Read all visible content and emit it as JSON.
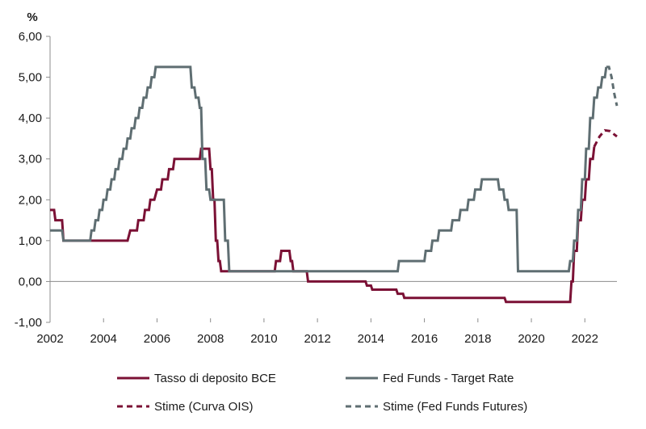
{
  "chart_data": {
    "type": "line",
    "title": "",
    "ylabel": "%",
    "xlabel": "",
    "xlim": [
      2002,
      2023.2
    ],
    "ylim": [
      -1,
      6
    ],
    "y_ticks": [
      "-1,00",
      "0,00",
      "1,00",
      "2,00",
      "3,00",
      "4,00",
      "5,00",
      "6,00"
    ],
    "y_tick_values": [
      -1,
      0,
      1,
      2,
      3,
      4,
      5,
      6
    ],
    "x_ticks": [
      "2002",
      "2004",
      "2006",
      "2008",
      "2010",
      "2012",
      "2014",
      "2016",
      "2018",
      "2020",
      "2022"
    ],
    "x_tick_values": [
      2002,
      2004,
      2006,
      2008,
      2010,
      2012,
      2014,
      2016,
      2018,
      2020,
      2022
    ],
    "grid": false,
    "legend_position": "bottom",
    "series": [
      {
        "name": "Tasso di deposito BCE",
        "color": "#7b1135",
        "style": "solid",
        "step": true,
        "points": [
          [
            2002.0,
            1.75
          ],
          [
            2002.15,
            1.75
          ],
          [
            2002.2,
            1.5
          ],
          [
            2002.45,
            1.5
          ],
          [
            2002.5,
            1.0
          ],
          [
            2004.9,
            1.0
          ],
          [
            2005.0,
            1.25
          ],
          [
            2005.25,
            1.25
          ],
          [
            2005.3,
            1.5
          ],
          [
            2005.5,
            1.5
          ],
          [
            2005.55,
            1.75
          ],
          [
            2005.7,
            1.75
          ],
          [
            2005.75,
            2.0
          ],
          [
            2005.9,
            2.0
          ],
          [
            2006.0,
            2.25
          ],
          [
            2006.15,
            2.25
          ],
          [
            2006.2,
            2.5
          ],
          [
            2006.4,
            2.5
          ],
          [
            2006.45,
            2.75
          ],
          [
            2006.6,
            2.75
          ],
          [
            2006.65,
            3.0
          ],
          [
            2007.6,
            3.0
          ],
          [
            2007.65,
            3.25
          ],
          [
            2007.95,
            3.25
          ],
          [
            2008.0,
            2.75
          ],
          [
            2008.05,
            2.75
          ],
          [
            2008.1,
            2.0
          ],
          [
            2008.15,
            2.0
          ],
          [
            2008.2,
            1.0
          ],
          [
            2008.25,
            1.0
          ],
          [
            2008.3,
            0.5
          ],
          [
            2008.35,
            0.5
          ],
          [
            2008.4,
            0.25
          ],
          [
            2010.4,
            0.25
          ],
          [
            2010.45,
            0.5
          ],
          [
            2010.6,
            0.5
          ],
          [
            2010.65,
            0.75
          ],
          [
            2010.95,
            0.75
          ],
          [
            2011.0,
            0.5
          ],
          [
            2011.05,
            0.5
          ],
          [
            2011.1,
            0.25
          ],
          [
            2011.6,
            0.25
          ],
          [
            2011.65,
            0.0
          ],
          [
            2013.8,
            0.0
          ],
          [
            2013.85,
            -0.1
          ],
          [
            2014.0,
            -0.1
          ],
          [
            2014.05,
            -0.2
          ],
          [
            2014.95,
            -0.2
          ],
          [
            2015.0,
            -0.3
          ],
          [
            2015.2,
            -0.3
          ],
          [
            2015.25,
            -0.4
          ],
          [
            2019.0,
            -0.4
          ],
          [
            2019.05,
            -0.5
          ],
          [
            2021.45,
            -0.5
          ],
          [
            2021.5,
            0.0
          ],
          [
            2021.55,
            0.0
          ],
          [
            2021.6,
            0.75
          ],
          [
            2021.7,
            0.75
          ],
          [
            2021.75,
            1.5
          ],
          [
            2021.85,
            1.5
          ],
          [
            2021.9,
            2.0
          ],
          [
            2022.0,
            2.0
          ],
          [
            2022.05,
            2.5
          ],
          [
            2022.15,
            2.5
          ],
          [
            2022.2,
            3.0
          ],
          [
            2022.3,
            3.0
          ],
          [
            2022.35,
            3.3
          ]
        ]
      },
      {
        "name": "Fed Funds - Target Rate",
        "color": "#5f6e72",
        "style": "solid",
        "step": true,
        "points": [
          [
            2002.0,
            1.25
          ],
          [
            2002.45,
            1.25
          ],
          [
            2002.5,
            1.0
          ],
          [
            2003.5,
            1.0
          ],
          [
            2003.55,
            1.25
          ],
          [
            2003.65,
            1.25
          ],
          [
            2003.7,
            1.5
          ],
          [
            2003.8,
            1.5
          ],
          [
            2003.85,
            1.75
          ],
          [
            2003.95,
            1.75
          ],
          [
            2004.0,
            2.0
          ],
          [
            2004.1,
            2.0
          ],
          [
            2004.15,
            2.25
          ],
          [
            2004.25,
            2.25
          ],
          [
            2004.3,
            2.5
          ],
          [
            2004.4,
            2.5
          ],
          [
            2004.45,
            2.75
          ],
          [
            2004.55,
            2.75
          ],
          [
            2004.6,
            3.0
          ],
          [
            2004.7,
            3.0
          ],
          [
            2004.75,
            3.25
          ],
          [
            2004.85,
            3.25
          ],
          [
            2004.9,
            3.5
          ],
          [
            2005.0,
            3.5
          ],
          [
            2005.05,
            3.75
          ],
          [
            2005.15,
            3.75
          ],
          [
            2005.2,
            4.0
          ],
          [
            2005.3,
            4.0
          ],
          [
            2005.35,
            4.25
          ],
          [
            2005.45,
            4.25
          ],
          [
            2005.5,
            4.5
          ],
          [
            2005.6,
            4.5
          ],
          [
            2005.65,
            4.75
          ],
          [
            2005.75,
            4.75
          ],
          [
            2005.8,
            5.0
          ],
          [
            2005.9,
            5.0
          ],
          [
            2005.95,
            5.25
          ],
          [
            2007.25,
            5.25
          ],
          [
            2007.3,
            4.75
          ],
          [
            2007.4,
            4.75
          ],
          [
            2007.45,
            4.5
          ],
          [
            2007.55,
            4.5
          ],
          [
            2007.6,
            4.25
          ],
          [
            2007.65,
            4.25
          ],
          [
            2007.7,
            3.0
          ],
          [
            2007.8,
            3.0
          ],
          [
            2007.85,
            2.25
          ],
          [
            2007.95,
            2.25
          ],
          [
            2008.0,
            2.0
          ],
          [
            2008.5,
            2.0
          ],
          [
            2008.55,
            1.0
          ],
          [
            2008.65,
            1.0
          ],
          [
            2008.7,
            0.25
          ],
          [
            2015.0,
            0.25
          ],
          [
            2015.05,
            0.5
          ],
          [
            2016.0,
            0.5
          ],
          [
            2016.05,
            0.75
          ],
          [
            2016.25,
            0.75
          ],
          [
            2016.3,
            1.0
          ],
          [
            2016.5,
            1.0
          ],
          [
            2016.55,
            1.25
          ],
          [
            2017.0,
            1.25
          ],
          [
            2017.05,
            1.5
          ],
          [
            2017.3,
            1.5
          ],
          [
            2017.35,
            1.75
          ],
          [
            2017.6,
            1.75
          ],
          [
            2017.65,
            2.0
          ],
          [
            2017.85,
            2.0
          ],
          [
            2017.9,
            2.25
          ],
          [
            2018.1,
            2.25
          ],
          [
            2018.15,
            2.5
          ],
          [
            2018.75,
            2.5
          ],
          [
            2018.8,
            2.25
          ],
          [
            2018.95,
            2.25
          ],
          [
            2019.0,
            2.0
          ],
          [
            2019.1,
            2.0
          ],
          [
            2019.15,
            1.75
          ],
          [
            2019.45,
            1.75
          ],
          [
            2019.5,
            0.25
          ],
          [
            2021.4,
            0.25
          ],
          [
            2021.45,
            0.5
          ],
          [
            2021.55,
            0.5
          ],
          [
            2021.6,
            1.0
          ],
          [
            2021.7,
            1.0
          ],
          [
            2021.75,
            1.75
          ],
          [
            2021.85,
            1.75
          ],
          [
            2021.9,
            2.5
          ],
          [
            2022.0,
            2.5
          ],
          [
            2022.05,
            3.25
          ],
          [
            2022.15,
            3.25
          ],
          [
            2022.2,
            4.0
          ],
          [
            2022.3,
            4.0
          ],
          [
            2022.35,
            4.5
          ],
          [
            2022.45,
            4.5
          ],
          [
            2022.5,
            4.75
          ],
          [
            2022.6,
            4.75
          ],
          [
            2022.65,
            5.0
          ],
          [
            2022.75,
            5.0
          ],
          [
            2022.8,
            5.25
          ]
        ]
      },
      {
        "name": "Stime (Curva OIS)",
        "color": "#7b1135",
        "style": "dashed",
        "points": [
          [
            2022.35,
            3.3
          ],
          [
            2022.55,
            3.55
          ],
          [
            2022.75,
            3.7
          ],
          [
            2022.95,
            3.68
          ],
          [
            2023.1,
            3.6
          ],
          [
            2023.2,
            3.55
          ]
        ]
      },
      {
        "name": "Stime (Fed Funds Futures)",
        "color": "#5f6e72",
        "style": "dashed",
        "points": [
          [
            2022.8,
            5.25
          ],
          [
            2022.9,
            5.25
          ],
          [
            2023.0,
            5.0
          ],
          [
            2023.1,
            4.6
          ],
          [
            2023.2,
            4.3
          ]
        ]
      }
    ]
  }
}
